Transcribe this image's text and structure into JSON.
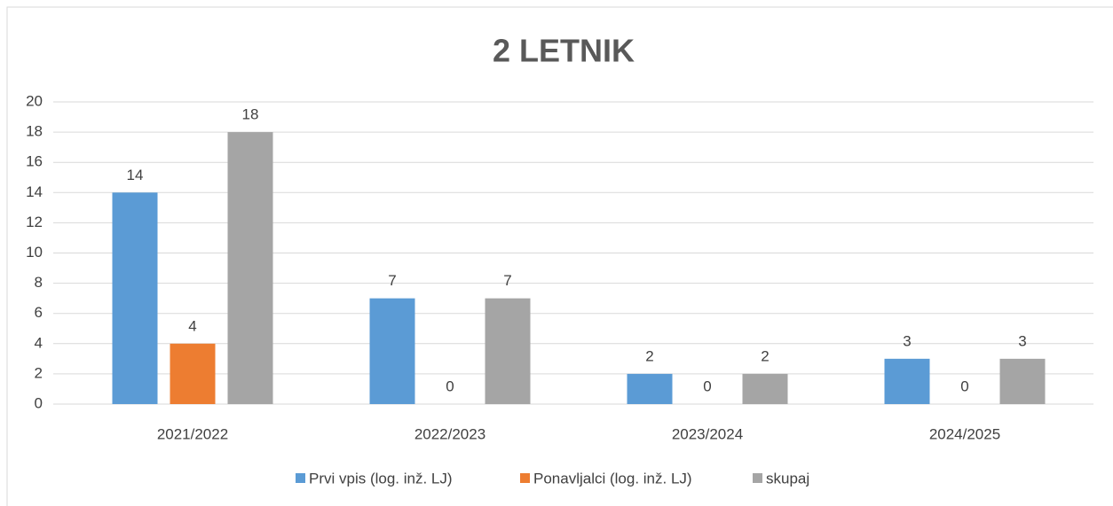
{
  "chart_data": {
    "type": "bar",
    "title": "2 LETNIK",
    "categories": [
      "2021/2022",
      "2022/2023",
      "2023/2024",
      "2024/2025"
    ],
    "series": [
      {
        "name": "Prvi vpis (log. inž. LJ)",
        "color": "#5b9bd5",
        "values": [
          14,
          7,
          2,
          3
        ]
      },
      {
        "name": "Ponavljalci (log. inž. LJ)",
        "color": "#ed7d31",
        "values": [
          4,
          0,
          0,
          0
        ]
      },
      {
        "name": "skupaj",
        "color": "#a5a5a5",
        "values": [
          18,
          7,
          2,
          3
        ]
      }
    ],
    "ylim": [
      0,
      20
    ],
    "yticks": [
      0,
      2,
      4,
      6,
      8,
      10,
      12,
      14,
      16,
      18,
      20
    ],
    "grid": true,
    "legend": "bottom"
  }
}
